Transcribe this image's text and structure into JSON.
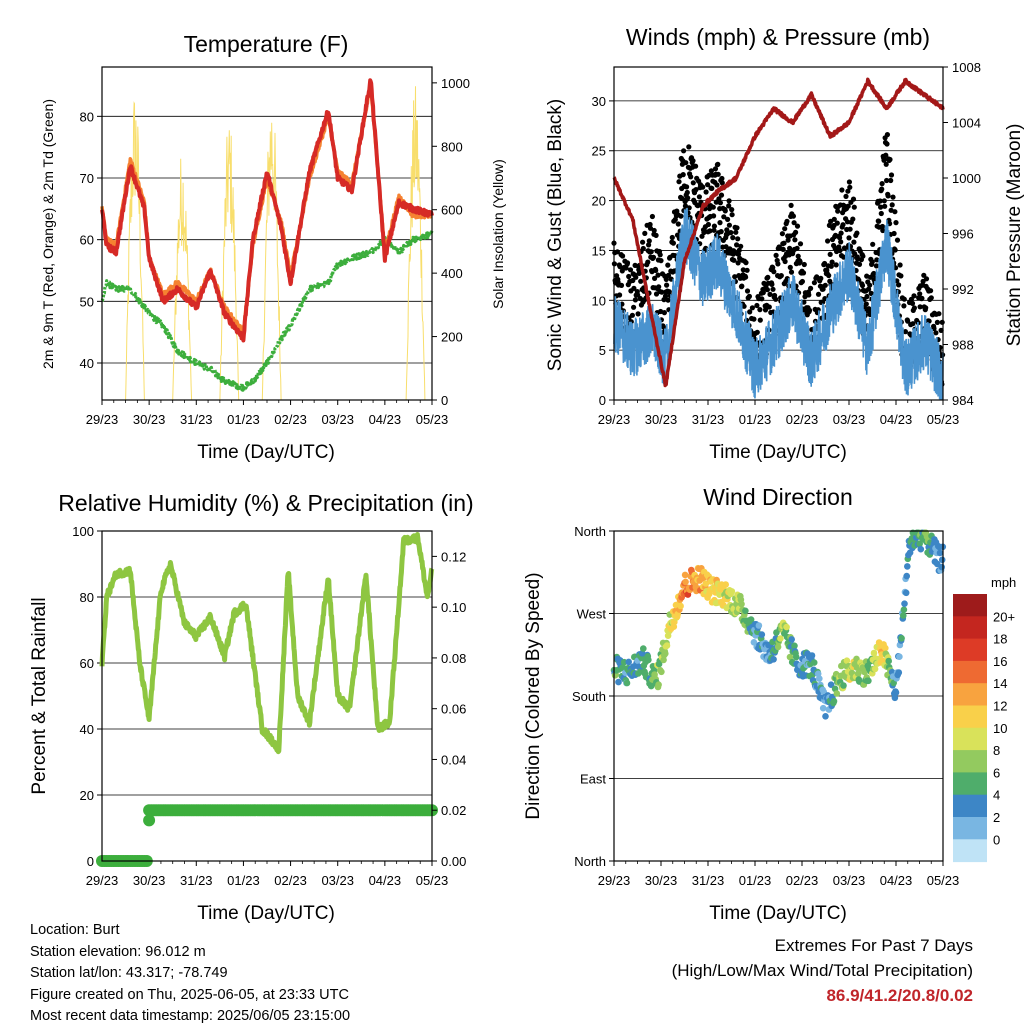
{
  "days": [
    "29/23",
    "30/23",
    "31/23",
    "01/23",
    "02/23",
    "03/23",
    "04/23",
    "05/23"
  ],
  "colors": {
    "temp2m": "#d62a26",
    "temp9m": "#f58231",
    "dewpoint": "#3cae3c",
    "solar": "#f8de6c",
    "wind": "#4a93cf",
    "gust": "#000000",
    "pressure": "#a31818",
    "rh": "#8ec641",
    "precip": "#3cae3c"
  },
  "panels": {
    "temperature": {
      "title": "Temperature (F)",
      "xlabel": "Time (Day/UTC)",
      "ylabel": "2m & 9m T (Red, Orange) & 2m Td (Green)",
      "y2label": "Solar Insolation (Yellow)",
      "ylim": [
        34,
        88
      ],
      "yticks": [
        40,
        50,
        60,
        70,
        80
      ],
      "y2lim": [
        0,
        1050
      ],
      "y2ticks": [
        0,
        200,
        400,
        600,
        800,
        1000
      ]
    },
    "winds": {
      "title": "Winds (mph) & Pressure (mb)",
      "xlabel": "Time (Day/UTC)",
      "ylabel": "Sonic Wind & Gust (Blue, Black)",
      "y2label": "Station Pressure (Maroon)",
      "ylim": [
        0,
        33.4
      ],
      "yticks": [
        0,
        5,
        10,
        15,
        20,
        25,
        30
      ],
      "y2lim": [
        984,
        1008
      ],
      "y2ticks": [
        984,
        988,
        992,
        996,
        1000,
        1004,
        1008
      ]
    },
    "humidity": {
      "title": "Relative Humidity (%) & Precipitation (in)",
      "xlabel": "Time (Day/UTC)",
      "ylabel": "Percent & Total Rainfall",
      "ylim": [
        0,
        100
      ],
      "yticks": [
        0,
        20,
        40,
        60,
        80,
        100
      ],
      "y2lim": [
        0,
        0.13
      ],
      "y2ticks": [
        "0.00",
        "0.02",
        "0.04",
        "0.06",
        "0.08",
        "0.10",
        "0.12"
      ]
    },
    "direction": {
      "title": "Wind Direction",
      "xlabel": "Time (Day/UTC)",
      "ylabel": "Direction (Colored By Speed)",
      "yticks": [
        "North",
        "East",
        "South",
        "West",
        "North"
      ],
      "legend_title": "mph",
      "legend_labels": [
        "20+",
        "18",
        "16",
        "14",
        "12",
        "10",
        "8",
        "6",
        "4",
        "2",
        "0"
      ],
      "legend_colors": [
        "#9e1b1b",
        "#c4261f",
        "#dd3b26",
        "#ee6a32",
        "#f8a33f",
        "#f9d04a",
        "#d9e25a",
        "#93ca5f",
        "#4fad6b",
        "#3d86c6",
        "#79b6e2",
        "#bfe3f6"
      ]
    }
  },
  "chart_data": [
    {
      "type": "line",
      "title": "Temperature (F)",
      "xlabel": "Time (Day/UTC)",
      "ylabel": "2m & 9m T (Red, Orange) & 2m Td (Green)",
      "y2label": "Solar Insolation (Yellow)",
      "x": [
        0,
        0.1,
        0.3,
        0.6,
        0.9,
        1.0,
        1.3,
        1.6,
        2.0,
        2.3,
        2.6,
        3.0,
        3.2,
        3.5,
        3.8,
        4.0,
        4.4,
        4.8,
        5.0,
        5.3,
        5.7,
        6.0,
        6.3,
        6.6,
        7.0
      ],
      "series": [
        {
          "name": "2m T",
          "values": [
            65,
            59,
            58,
            72,
            65,
            57,
            50,
            52,
            49,
            55,
            48,
            44,
            60,
            71,
            62,
            53,
            71,
            81,
            70,
            68,
            86,
            57,
            66,
            65,
            64
          ]
        },
        {
          "name": "9m T",
          "values": [
            65,
            60,
            59,
            73,
            66,
            57,
            51,
            53,
            50,
            55,
            49,
            45,
            59,
            70,
            63,
            54,
            70,
            80,
            71,
            69,
            85,
            58,
            67,
            64,
            64
          ]
        },
        {
          "name": "2m Td",
          "values": [
            50,
            53,
            52,
            52,
            49,
            48,
            46,
            42,
            40,
            39,
            37,
            36,
            37,
            40,
            44,
            46,
            52,
            53,
            56,
            57,
            58,
            60,
            58,
            60,
            61
          ]
        }
      ],
      "solar_peaks": [
        {
          "day": 0.7,
          "value": 1000
        },
        {
          "day": 1.7,
          "value": 800
        },
        {
          "day": 2.7,
          "value": 900
        },
        {
          "day": 3.6,
          "value": 1000
        },
        {
          "day": 6.65,
          "value": 1000
        }
      ],
      "ylim": [
        34,
        88
      ],
      "y2lim": [
        0,
        1050
      ]
    },
    {
      "type": "scatter",
      "title": "Winds (mph) & Pressure (mb)",
      "xlabel": "Time (Day/UTC)",
      "ylabel": "Sonic Wind & Gust (Blue, Black)",
      "y2label": "Station Pressure (Maroon)",
      "x": [
        0,
        0.4,
        0.8,
        1.1,
        1.5,
        1.9,
        2.2,
        2.6,
        3.0,
        3.4,
        3.8,
        4.2,
        4.6,
        5.0,
        5.4,
        5.8,
        6.2,
        6.6,
        7.0
      ],
      "series": [
        {
          "name": "Wind",
          "values": [
            8,
            5,
            7,
            4,
            17,
            12,
            14,
            9,
            3,
            6,
            10,
            4,
            9,
            13,
            5,
            16,
            3,
            6,
            2
          ]
        },
        {
          "name": "Gust",
          "values": [
            12,
            9,
            15,
            8,
            23,
            18,
            20,
            14,
            6,
            10,
            16,
            7,
            14,
            19,
            8,
            24,
            5,
            9,
            4
          ]
        },
        {
          "name": "Pressure",
          "values": [
            1000,
            997,
            990,
            985,
            994,
            998,
            999,
            1000,
            1003,
            1005,
            1004,
            1006,
            1003,
            1004,
            1007,
            1005,
            1007,
            1006,
            1005
          ]
        }
      ],
      "ylim": [
        0,
        33.4
      ],
      "y2lim": [
        984,
        1008
      ]
    },
    {
      "type": "line",
      "title": "Relative Humidity (%) & Precipitation (in)",
      "xlabel": "Time (Day/UTC)",
      "ylabel": "Percent & Total Rainfall",
      "x": [
        0,
        0.1,
        0.3,
        0.6,
        0.8,
        1.0,
        1.25,
        1.45,
        1.75,
        2.0,
        2.3,
        2.6,
        2.8,
        3.05,
        3.4,
        3.75,
        3.95,
        4.15,
        4.4,
        4.8,
        5.0,
        5.25,
        5.6,
        5.85,
        6.1,
        6.4,
        6.7,
        6.9,
        7.0
      ],
      "series": [
        {
          "name": "RH",
          "values": [
            60,
            80,
            87,
            88,
            60,
            43,
            82,
            90,
            72,
            68,
            74,
            62,
            75,
            78,
            40,
            34,
            88,
            50,
            42,
            86,
            50,
            46,
            87,
            40,
            42,
            97,
            98,
            80,
            88
          ]
        },
        {
          "name": "Precipitation",
          "values": [
            0,
            0,
            0,
            0,
            0,
            0.016,
            0.02,
            0.02,
            0.02,
            0.02,
            0.02,
            0.02,
            0.02,
            0.02,
            0.02,
            0.02,
            0.02,
            0.02,
            0.02,
            0.02,
            0.02,
            0.02,
            0.02,
            0.02,
            0.02,
            0.02,
            0.02,
            0.02,
            0.02
          ]
        }
      ],
      "ylim": [
        0,
        100
      ],
      "y2lim": [
        0,
        0.13
      ]
    },
    {
      "type": "scatter",
      "title": "Wind Direction",
      "xlabel": "Time (Day/UTC)",
      "ylabel": "Direction (Colored By Speed)",
      "x": [
        0,
        0.3,
        0.6,
        0.9,
        1.2,
        1.5,
        1.8,
        2.1,
        2.4,
        2.7,
        3.0,
        3.3,
        3.6,
        3.9,
        4.2,
        4.5,
        4.8,
        5.1,
        5.4,
        5.7,
        6.0,
        6.3,
        6.6,
        6.9
      ],
      "series": [
        {
          "name": "Direction (deg)",
          "values": [
            210,
            205,
            220,
            195,
            260,
            300,
            310,
            295,
            290,
            275,
            250,
            225,
            250,
            215,
            215,
            165,
            200,
            210,
            205,
            230,
            185,
            350,
            355,
            330
          ]
        },
        {
          "name": "Speed (mph)",
          "values": [
            6,
            4,
            5,
            7,
            10,
            16,
            14,
            12,
            10,
            9,
            4,
            3,
            9,
            4,
            5,
            3,
            8,
            10,
            6,
            12,
            3,
            5,
            6,
            3
          ]
        }
      ],
      "ylim": [
        0,
        360
      ]
    }
  ],
  "info": {
    "location": "Location: Burt",
    "elevation": "Station elevation: 96.012 m",
    "latlon": "Station lat/lon: 43.317; -78.749",
    "created": "Figure created on Thu, 2025-06-05, at 23:33 UTC",
    "recent": "Most recent data timestamp: 2025/06/05 23:15:00"
  },
  "extremes": {
    "line1": "Extremes For Past 7 Days",
    "line2": "(High/Low/Max Wind/Total Precipitation)",
    "values": "86.9/41.2/20.8/0.02"
  }
}
